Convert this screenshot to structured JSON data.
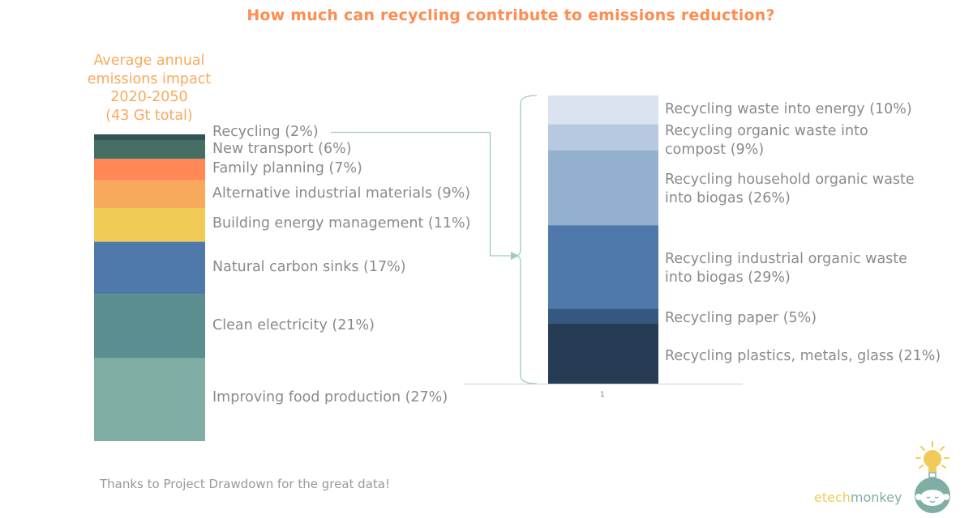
{
  "chart_data": [
    {
      "type": "bar",
      "stacked": true,
      "title": "How much can recycling contribute to emissions reduction?",
      "subtitle": [
        "Average annual",
        "emissions impact",
        "2020-2050",
        "(43 Gt total)"
      ],
      "unit": "%",
      "segments": [
        {
          "label": "Recycling (2%)",
          "value": 2,
          "color": "#2f5555"
        },
        {
          "label": "New transport (6%)",
          "value": 6,
          "color": "#476e65"
        },
        {
          "label": "Family planning (7%)",
          "value": 7,
          "color": "#ff8856"
        },
        {
          "label": "Alternative industrial materials (9%)",
          "value": 9,
          "color": "#f9a95c"
        },
        {
          "label": "Building energy management (11%)",
          "value": 11,
          "color": "#f0cb58"
        },
        {
          "label": "Natural carbon sinks (17%)",
          "value": 17,
          "color": "#4e79aa"
        },
        {
          "label": "Clean electricity (21%)",
          "value": 21,
          "color": "#5b8f8f"
        },
        {
          "label": "Improving food production (27%)",
          "value": 27,
          "color": "#80aea5"
        }
      ]
    },
    {
      "type": "bar",
      "stacked": true,
      "category": "1",
      "segments": [
        {
          "label": [
            "Recycling waste into energy (10%)"
          ],
          "value": 10,
          "color": "#dae3ef"
        },
        {
          "label": [
            "Recycling organic waste into",
            "compost (9%)"
          ],
          "value": 9,
          "color": "#b7c9e0"
        },
        {
          "label": [
            "Recycling household organic waste",
            "into biogas (26%)"
          ],
          "value": 26,
          "color": "#94b0cf"
        },
        {
          "label": [
            "Recycling industrial organic waste",
            "into biogas (29%)"
          ],
          "value": 29,
          "color": "#4e79aa"
        },
        {
          "label": [
            "Recycling paper (5%)"
          ],
          "value": 5,
          "color": "#355880"
        },
        {
          "label": [
            "Recycling plastics, metals, glass (21%)"
          ],
          "value": 21,
          "color": "#263c55"
        }
      ]
    }
  ],
  "footer": "Thanks to Project Drawdown for the great data!",
  "logo": {
    "part1": "etech",
    "part2": "monkey",
    "color1": "#f0cb58",
    "color2": "#80aea5"
  },
  "colors": {
    "title": "#ff8c50",
    "subtitle": "#f9a95c",
    "connector": "#9fcac4"
  }
}
